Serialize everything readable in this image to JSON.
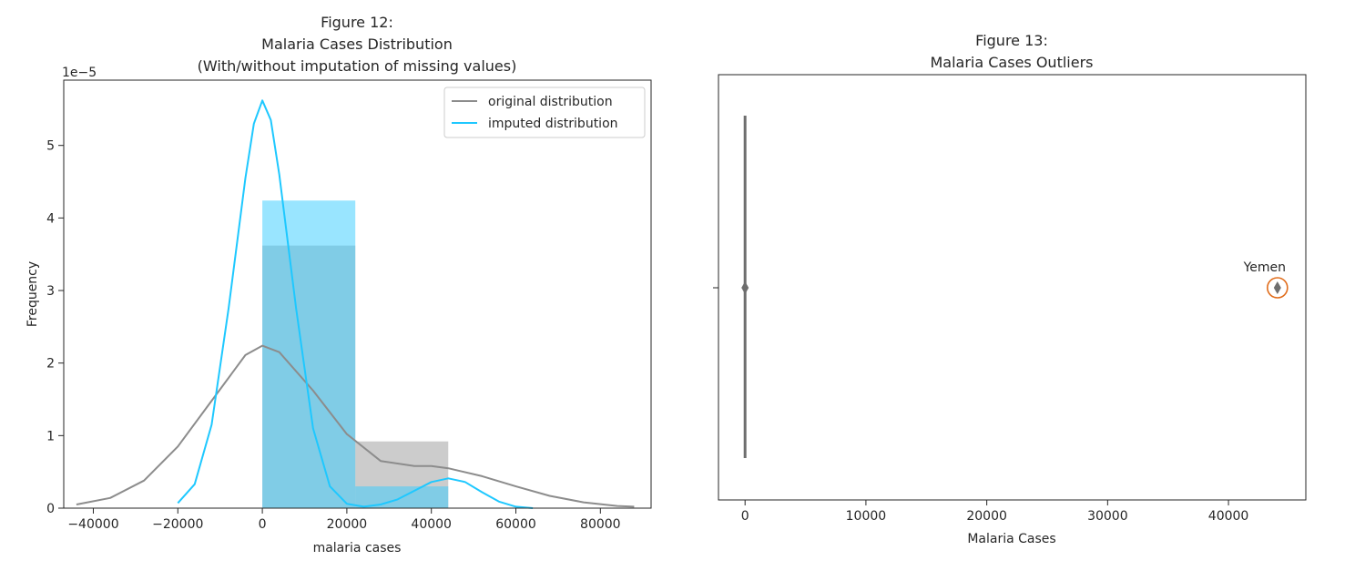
{
  "chart_data": [
    {
      "type": "histogram+kde",
      "title_lines": [
        "Figure 12:",
        "Malaria Cases Distribution",
        "(With/without imputation of missing values)"
      ],
      "xlabel": "malaria cases",
      "ylabel": "Frequency",
      "y_offset_label": "1e−5",
      "xlim": [
        -47000,
        92000
      ],
      "ylim": [
        0,
        5.9e-05
      ],
      "xticks": [
        -40000,
        -20000,
        0,
        20000,
        40000,
        60000,
        80000
      ],
      "xtick_labels": [
        "−40000",
        "−20000",
        "0",
        "20000",
        "40000",
        "60000",
        "80000"
      ],
      "yticks": [
        0,
        1e-05,
        2e-05,
        3e-05,
        4e-05,
        5e-05
      ],
      "ytick_labels": [
        "0",
        "1",
        "2",
        "3",
        "4",
        "5"
      ],
      "legend": {
        "placement": "top-right",
        "entries": [
          {
            "label": "original distribution",
            "color": "#8c8c8c"
          },
          {
            "label": "imputed distribution",
            "color": "#1ec8ff"
          }
        ]
      },
      "histograms": [
        {
          "series": "original distribution",
          "color": "#999999",
          "opacity": 0.5,
          "bins": [
            {
              "x0": 0,
              "x1": 22000,
              "y": 3.62e-05
            },
            {
              "x0": 22000,
              "x1": 44000,
              "y": 9.2e-06
            }
          ]
        },
        {
          "series": "imputed distribution",
          "color": "#33ccff",
          "opacity": 0.5,
          "bins": [
            {
              "x0": 0,
              "x1": 22000,
              "y": 4.24e-05
            },
            {
              "x0": 22000,
              "x1": 44000,
              "y": 3e-06
            }
          ]
        }
      ],
      "kde": [
        {
          "series": "original distribution",
          "color": "#8c8c8c",
          "x": [
            -44000,
            -36000,
            -28000,
            -20000,
            -12000,
            -4000,
            0,
            4000,
            12000,
            20000,
            28000,
            36000,
            40000,
            44000,
            52000,
            60000,
            68000,
            76000,
            84000,
            88000
          ],
          "y": [
            5e-07,
            1.4e-06,
            3.8e-06,
            8.5e-06,
            1.48e-05,
            2.11e-05,
            2.24e-05,
            2.15e-05,
            1.62e-05,
            1.02e-05,
            6.5e-06,
            5.8e-06,
            5.8e-06,
            5.5e-06,
            4.4e-06,
            3e-06,
            1.7e-06,
            8e-07,
            3e-07,
            2e-07
          ]
        },
        {
          "series": "imputed distribution",
          "color": "#1ec8ff",
          "x": [
            -20000,
            -16000,
            -12000,
            -8000,
            -4000,
            -2000,
            0,
            2000,
            4000,
            8000,
            12000,
            16000,
            20000,
            24000,
            28000,
            32000,
            36000,
            40000,
            44000,
            48000,
            52000,
            56000,
            60000,
            64000
          ],
          "y": [
            7e-07,
            3.3e-06,
            1.15e-05,
            2.75e-05,
            4.55e-05,
            5.3e-05,
            5.62e-05,
            5.35e-05,
            4.6e-05,
            2.75e-05,
            1.1e-05,
            3e-06,
            6e-07,
            2e-07,
            5e-07,
            1.2e-06,
            2.4e-06,
            3.6e-06,
            4.1e-06,
            3.6e-06,
            2.2e-06,
            9e-07,
            2e-07,
            0.0
          ]
        }
      ]
    },
    {
      "type": "boxplot",
      "title_lines": [
        "Figure 13:",
        "Malaria Cases Outliers"
      ],
      "xlabel": "Malaria Cases",
      "xlim": [
        -2200,
        46400
      ],
      "xticks": [
        0,
        10000,
        20000,
        30000,
        40000
      ],
      "xtick_labels": [
        "0",
        "10000",
        "20000",
        "30000",
        "40000"
      ],
      "box": {
        "min": 0,
        "q1": 0,
        "median": 0,
        "q3": 0,
        "max": 0,
        "color": "#6e6e6e"
      },
      "outliers": [
        {
          "x": 0
        },
        {
          "x": 44050
        }
      ],
      "annotations": [
        {
          "text": "Yemen",
          "x": 44050,
          "highlight_color": "#e06c1a"
        }
      ]
    }
  ]
}
